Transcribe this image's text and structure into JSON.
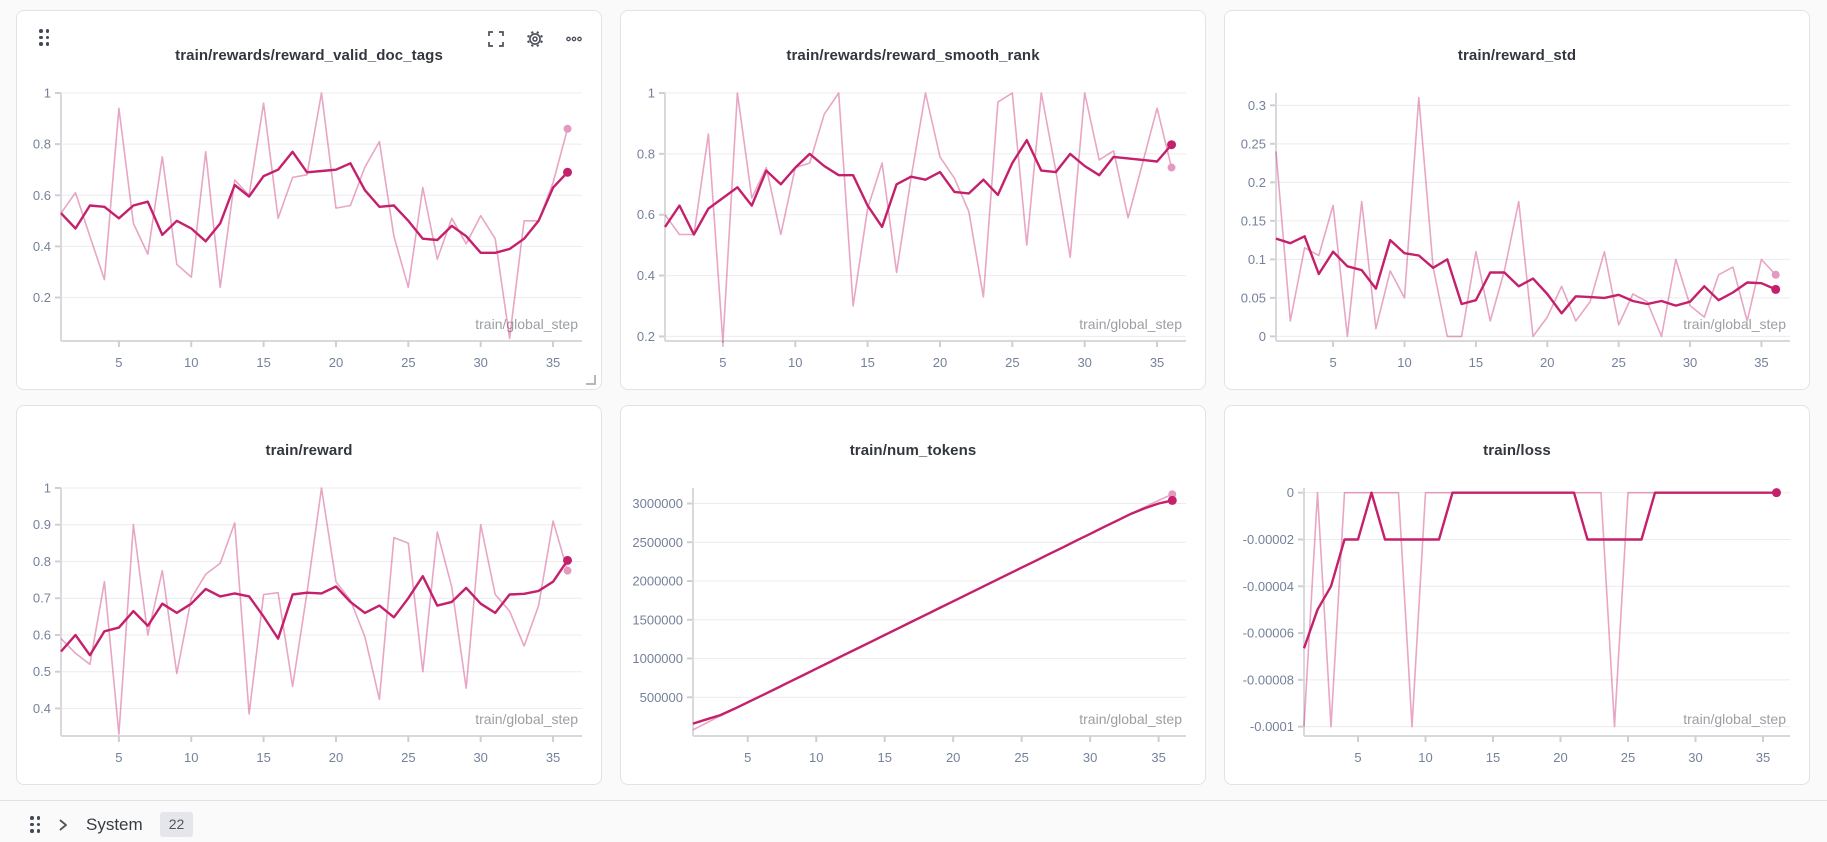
{
  "page": {
    "background": "#fafafa"
  },
  "colors": {
    "accent_pink": "#C5206B",
    "smoothed_line": "#C5206B",
    "raw_line": "rgba(197,32,107,0.40)",
    "raw_dot": "#E399C0",
    "grid_line": "#ececee",
    "axis_line": "#d9d9dc",
    "axis_tick": "#cfcfd3",
    "tick_label": "#75819b",
    "axis_title_label": "#9b9ea3",
    "panel_title": "#33373d",
    "icon": "#4a4f5a",
    "card_bg": "#ffffff"
  },
  "panel_icons": {
    "drag_handle": "drag-handle-icon",
    "fullscreen": "fullscreen-icon",
    "settings": "gear-icon",
    "more": "ellipsis-icon",
    "resize": "resize-corner-icon"
  },
  "footer": {
    "section_label": "System",
    "badge_count": "22",
    "icons": {
      "drag_handle": "drag-handle-icon",
      "expand": "chevron-right-icon"
    }
  },
  "chart_data": [
    {
      "type": "line",
      "title": "train/rewards/reward_valid_doc_tags",
      "xlabel": "train/global_step",
      "x_start": 1,
      "xlim": [
        1,
        37
      ],
      "xticks": [
        5,
        10,
        15,
        20,
        25,
        30,
        35
      ],
      "ytick_labels": [
        "1",
        "0.8",
        "0.6",
        "0.4",
        "0.2"
      ],
      "ytick_values": [
        1,
        0.8,
        0.6,
        0.4,
        0.2
      ],
      "ylim": [
        0.03,
        1.0
      ],
      "legend": "hidden",
      "grid": true,
      "series": [
        {
          "name": "raw",
          "values": [
            0.53,
            0.61,
            0.44,
            0.27,
            0.94,
            0.49,
            0.37,
            0.75,
            0.33,
            0.28,
            0.77,
            0.24,
            0.66,
            0.6,
            0.96,
            0.51,
            0.67,
            0.68,
            1.0,
            0.55,
            0.56,
            0.71,
            0.81,
            0.44,
            0.24,
            0.63,
            0.35,
            0.51,
            0.41,
            0.52,
            0.43,
            0.04,
            0.5,
            0.5,
            0.65,
            0.86
          ]
        },
        {
          "name": "smoothed",
          "values": [
            0.53,
            0.47,
            0.56,
            0.555,
            0.51,
            0.56,
            0.575,
            0.445,
            0.5,
            0.47,
            0.42,
            0.49,
            0.64,
            0.595,
            0.675,
            0.7,
            0.77,
            0.69,
            0.695,
            0.7,
            0.725,
            0.62,
            0.555,
            0.56,
            0.5,
            0.43,
            0.425,
            0.48,
            0.44,
            0.375,
            0.375,
            0.39,
            0.43,
            0.5,
            0.63,
            0.69
          ]
        }
      ]
    },
    {
      "type": "line",
      "title": "train/rewards/reward_smooth_rank",
      "xlabel": "train/global_step",
      "x_start": 1,
      "xlim": [
        1,
        37
      ],
      "xticks": [
        5,
        10,
        15,
        20,
        25,
        30,
        35
      ],
      "ytick_labels": [
        "1",
        "0.8",
        "0.6",
        "0.4",
        "0.2"
      ],
      "ytick_values": [
        1,
        0.8,
        0.6,
        0.4,
        0.2
      ],
      "ylim": [
        0.185,
        1.0
      ],
      "legend": "hidden",
      "grid": true,
      "series": [
        {
          "name": "raw",
          "values": [
            0.6,
            0.535,
            0.535,
            0.865,
            0.18,
            1.0,
            0.655,
            0.755,
            0.535,
            0.755,
            0.77,
            0.93,
            1.0,
            0.3,
            0.62,
            0.77,
            0.41,
            0.72,
            1.0,
            0.79,
            0.72,
            0.61,
            0.33,
            0.97,
            1.0,
            0.5,
            1.0,
            0.745,
            0.46,
            1.0,
            0.78,
            0.81,
            0.59,
            0.77,
            0.95,
            0.755
          ]
        },
        {
          "name": "smoothed",
          "values": [
            0.56,
            0.63,
            0.535,
            0.62,
            0.655,
            0.69,
            0.63,
            0.745,
            0.7,
            0.755,
            0.8,
            0.76,
            0.73,
            0.73,
            0.63,
            0.56,
            0.7,
            0.725,
            0.715,
            0.74,
            0.675,
            0.67,
            0.715,
            0.665,
            0.77,
            0.845,
            0.745,
            0.74,
            0.8,
            0.76,
            0.73,
            0.79,
            0.785,
            0.78,
            0.775,
            0.83
          ]
        }
      ]
    },
    {
      "type": "line",
      "title": "train/reward_std",
      "xlabel": "train/global_step",
      "x_start": 1,
      "xlim": [
        1,
        37
      ],
      "xticks": [
        5,
        10,
        15,
        20,
        25,
        30,
        35
      ],
      "ytick_labels": [
        "0.3",
        "0.25",
        "0.2",
        "0.15",
        "0.1",
        "0.05",
        "0"
      ],
      "ytick_values": [
        0.3,
        0.25,
        0.2,
        0.15,
        0.1,
        0.05,
        0
      ],
      "ylim": [
        -0.006,
        0.316
      ],
      "legend": "hidden",
      "grid": true,
      "series": [
        {
          "name": "raw",
          "values": [
            0.24,
            0.02,
            0.115,
            0.105,
            0.17,
            0.0,
            0.175,
            0.01,
            0.085,
            0.05,
            0.31,
            0.09,
            0.0,
            0.0,
            0.11,
            0.02,
            0.085,
            0.175,
            0.0,
            0.025,
            0.065,
            0.02,
            0.045,
            0.11,
            0.015,
            0.055,
            0.045,
            0.0,
            0.1,
            0.04,
            0.025,
            0.08,
            0.09,
            0.02,
            0.1,
            0.08
          ]
        },
        {
          "name": "smoothed",
          "values": [
            0.127,
            0.121,
            0.13,
            0.081,
            0.11,
            0.091,
            0.086,
            0.062,
            0.125,
            0.108,
            0.105,
            0.089,
            0.1,
            0.042,
            0.047,
            0.083,
            0.083,
            0.065,
            0.075,
            0.055,
            0.03,
            0.052,
            0.051,
            0.05,
            0.054,
            0.046,
            0.042,
            0.046,
            0.04,
            0.045,
            0.065,
            0.047,
            0.057,
            0.07,
            0.069,
            0.061
          ]
        }
      ]
    },
    {
      "type": "line",
      "title": "train/reward",
      "xlabel": "train/global_step",
      "x_start": 1,
      "xlim": [
        1,
        37
      ],
      "xticks": [
        5,
        10,
        15,
        20,
        25,
        30,
        35
      ],
      "ytick_labels": [
        "1",
        "0.9",
        "0.8",
        "0.7",
        "0.6",
        "0.5",
        "0.4"
      ],
      "ytick_values": [
        1,
        0.9,
        0.8,
        0.7,
        0.6,
        0.5,
        0.4
      ],
      "ylim": [
        0.325,
        1.0
      ],
      "legend": "hidden",
      "grid": true,
      "series": [
        {
          "name": "raw",
          "values": [
            0.59,
            0.55,
            0.52,
            0.745,
            0.33,
            0.9,
            0.6,
            0.775,
            0.495,
            0.7,
            0.765,
            0.795,
            0.905,
            0.385,
            0.71,
            0.715,
            0.46,
            0.715,
            1.0,
            0.745,
            0.695,
            0.595,
            0.425,
            0.865,
            0.85,
            0.5,
            0.88,
            0.73,
            0.455,
            0.9,
            0.71,
            0.665,
            0.57,
            0.68,
            0.91,
            0.775
          ]
        },
        {
          "name": "smoothed",
          "values": [
            0.555,
            0.6,
            0.545,
            0.61,
            0.62,
            0.665,
            0.625,
            0.685,
            0.66,
            0.685,
            0.725,
            0.705,
            0.713,
            0.705,
            0.65,
            0.59,
            0.71,
            0.715,
            0.713,
            0.732,
            0.69,
            0.66,
            0.68,
            0.648,
            0.7,
            0.76,
            0.68,
            0.69,
            0.728,
            0.685,
            0.66,
            0.71,
            0.712,
            0.72,
            0.745,
            0.803
          ]
        }
      ]
    },
    {
      "type": "line",
      "title": "train/num_tokens",
      "xlabel": "train/global_step",
      "x_start": 1,
      "xlim": [
        1,
        37
      ],
      "xticks": [
        5,
        10,
        15,
        20,
        25,
        30,
        35
      ],
      "ytick_labels": [
        "3000000",
        "2500000",
        "2000000",
        "1500000",
        "1000000",
        "500000"
      ],
      "ytick_values": [
        3000000,
        2500000,
        2000000,
        1500000,
        1000000,
        500000
      ],
      "ylim": [
        0,
        3200000
      ],
      "legend": "hidden",
      "grid": true,
      "series": [
        {
          "name": "raw",
          "values": [
            80000,
            170000,
            260000,
            345000,
            432000,
            519000,
            606000,
            693000,
            780000,
            867000,
            954000,
            1041000,
            1128000,
            1215000,
            1302000,
            1389000,
            1476000,
            1563000,
            1650000,
            1737000,
            1824000,
            1911000,
            1998000,
            2085000,
            2172000,
            2259000,
            2346000,
            2433000,
            2520000,
            2607000,
            2694000,
            2781000,
            2868000,
            2955000,
            3040000,
            3120000
          ]
        },
        {
          "name": "smoothed",
          "values": [
            160000,
            215000,
            270000,
            350000,
            435000,
            520000,
            607000,
            694000,
            781000,
            868000,
            955000,
            1042000,
            1129000,
            1216000,
            1303000,
            1390000,
            1477000,
            1564000,
            1651000,
            1738000,
            1825000,
            1912000,
            1999000,
            2086000,
            2173000,
            2260000,
            2347000,
            2434000,
            2521000,
            2608000,
            2695000,
            2782000,
            2869000,
            2940000,
            3000000,
            3040000
          ]
        }
      ]
    },
    {
      "type": "line",
      "title": "train/loss",
      "xlabel": "train/global_step",
      "x_start": 1,
      "xlim": [
        1,
        37
      ],
      "xticks": [
        5,
        10,
        15,
        20,
        25,
        30,
        35
      ],
      "ytick_labels": [
        "0",
        "-0.00002",
        "-0.00004",
        "-0.00006",
        "-0.00008",
        "-0.0001"
      ],
      "ytick_values": [
        0,
        -2e-05,
        -4e-05,
        -6e-05,
        -8e-05,
        -0.0001
      ],
      "ylim": [
        -0.000104,
        2e-06
      ],
      "legend": "hidden",
      "grid": true,
      "series": [
        {
          "name": "raw",
          "values": [
            -0.0001,
            0,
            -0.0001,
            0,
            0,
            0,
            0,
            0,
            -0.0001,
            0,
            0,
            0,
            0,
            0,
            0,
            0,
            0,
            0,
            0,
            0,
            0,
            0,
            0,
            -0.0001,
            0,
            0,
            0,
            0,
            0,
            0,
            0,
            0,
            0,
            0,
            0,
            0
          ]
        },
        {
          "name": "smoothed",
          "values": [
            -6.65e-05,
            -5e-05,
            -4e-05,
            -2e-05,
            -2e-05,
            0,
            -2e-05,
            -2e-05,
            -2e-05,
            -2e-05,
            -2e-05,
            0,
            0,
            0,
            0,
            0,
            0,
            0,
            0,
            0,
            0,
            -2e-05,
            -2e-05,
            -2e-05,
            -2e-05,
            -2e-05,
            0,
            0,
            0,
            0,
            0,
            0,
            0,
            0,
            0,
            0
          ]
        }
      ]
    }
  ]
}
